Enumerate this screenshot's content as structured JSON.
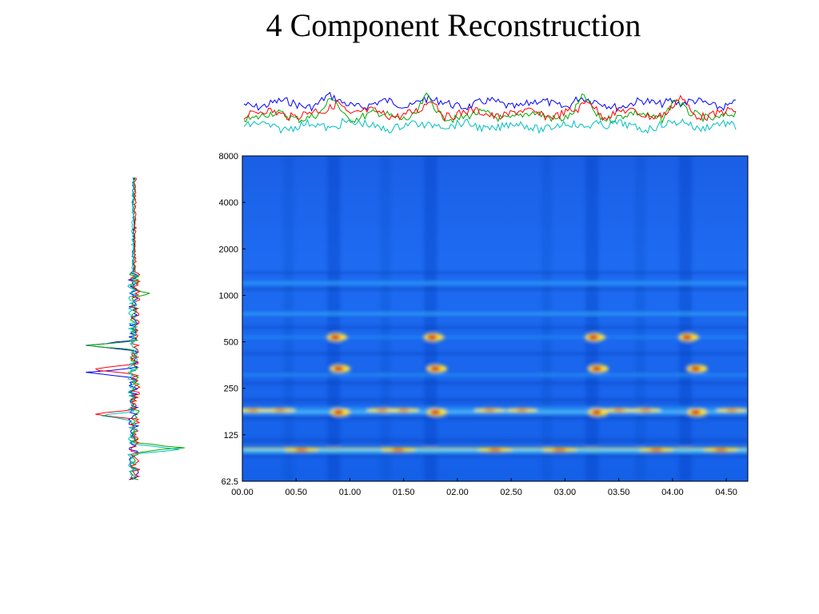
{
  "page": {
    "title": "4 Component Reconstruction"
  },
  "chart_data": {
    "type": "heatmap",
    "title": "",
    "xlabel": "",
    "ylabel": "",
    "x_tick_labels": [
      "00.00",
      "00.50",
      "01.00",
      "01.50",
      "02.00",
      "02.50",
      "03.00",
      "03.50",
      "04.00",
      "04.50"
    ],
    "x_ticks": [
      0,
      0.5,
      1.0,
      1.5,
      2.0,
      2.5,
      3.0,
      3.5,
      4.0,
      4.5
    ],
    "xlim": [
      0,
      4.7
    ],
    "y_tick_labels": [
      "62.5",
      "125",
      "250",
      "500",
      "1000",
      "2000",
      "4000",
      "8000"
    ],
    "y_ticks": [
      62.5,
      125,
      250,
      500,
      1000,
      2000,
      4000,
      8000
    ],
    "ylim": [
      62.5,
      8000
    ],
    "y_scale": "log2",
    "colormap": "jet",
    "grid": false,
    "components": [
      {
        "name": "",
        "color": "#0000ff"
      },
      {
        "name": "",
        "color": "#00aa00"
      },
      {
        "name": "",
        "color": "#ff0000"
      },
      {
        "name": "",
        "color": "#00bfbf"
      }
    ],
    "onsets": [
      0.85,
      1.75,
      3.25,
      4.12
    ],
    "harmonic_bands_hz": [
      98,
      102,
      175,
      185,
      305,
      535,
      760,
      1200
    ],
    "hot_spots": [
      {
        "t": 0.85,
        "f": 535
      },
      {
        "t": 1.75,
        "f": 535
      },
      {
        "t": 3.25,
        "f": 535
      },
      {
        "t": 4.12,
        "f": 535
      },
      {
        "t": 0.88,
        "f": 335
      },
      {
        "t": 1.78,
        "f": 335
      },
      {
        "t": 3.28,
        "f": 335
      },
      {
        "t": 4.2,
        "f": 335
      },
      {
        "t": 0.88,
        "f": 175
      },
      {
        "t": 1.78,
        "f": 175
      },
      {
        "t": 3.28,
        "f": 175
      },
      {
        "t": 4.2,
        "f": 175
      }
    ]
  }
}
